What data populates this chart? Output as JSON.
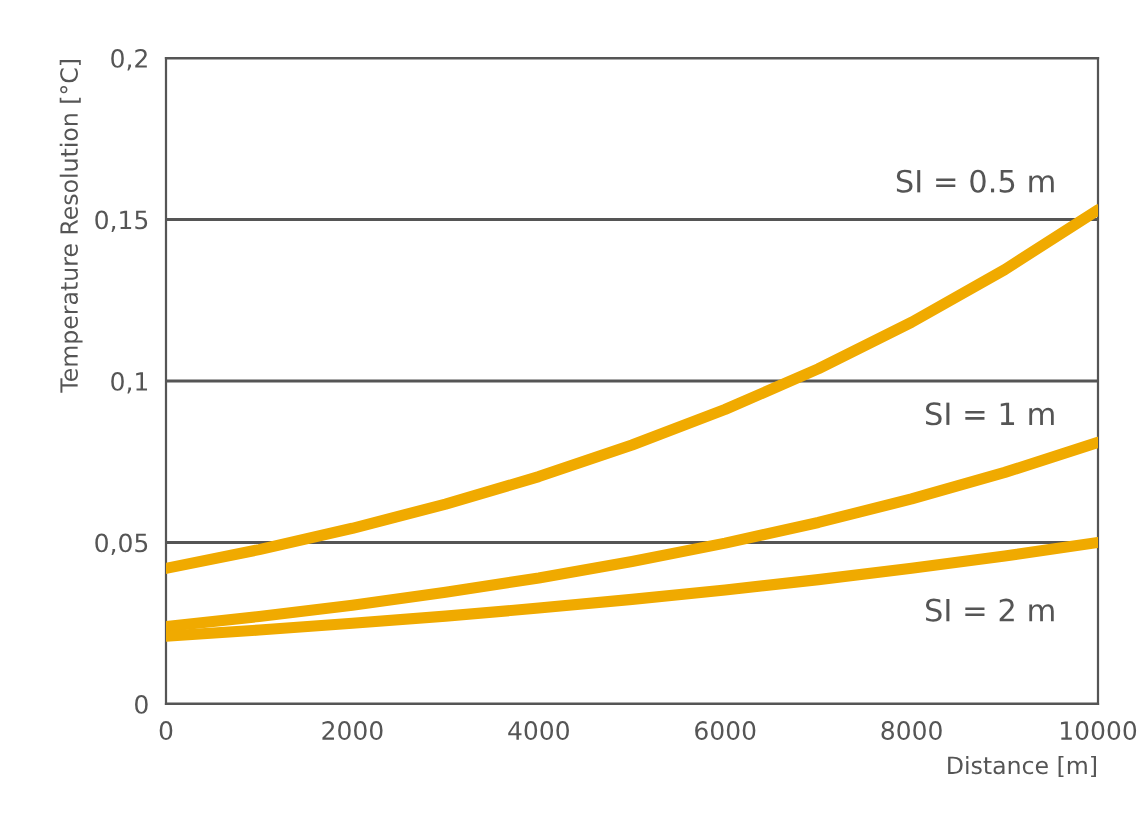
{
  "chart_data": {
    "type": "line",
    "xlabel": "Distance [m]",
    "ylabel": "Temperature Resolution [°C]",
    "x": [
      0,
      1000,
      2000,
      3000,
      4000,
      5000,
      6000,
      7000,
      8000,
      9000,
      10000
    ],
    "series": [
      {
        "name": "SI = 0.5 m",
        "color": "#f0aa00",
        "values": [
          0.042,
          0.0478,
          0.0544,
          0.0619,
          0.0704,
          0.0802,
          0.0912,
          0.1038,
          0.1182,
          0.1345,
          0.153
        ]
      },
      {
        "name": "SI = 1 m",
        "color": "#f0aa00",
        "values": [
          0.024,
          0.0271,
          0.0306,
          0.0346,
          0.039,
          0.0441,
          0.0498,
          0.0562,
          0.0635,
          0.0717,
          0.081
        ]
      },
      {
        "name": "SI = 2 m",
        "color": "#f0aa00",
        "values": [
          0.021,
          0.0229,
          0.025,
          0.0272,
          0.0297,
          0.0324,
          0.0353,
          0.0385,
          0.042,
          0.0458,
          0.05
        ]
      }
    ],
    "xlim": [
      0,
      10000
    ],
    "ylim": [
      0,
      0.2
    ],
    "xticks": [
      0,
      2000,
      4000,
      6000,
      8000,
      10000
    ],
    "yticks": [
      0,
      {
        "value": 0.05,
        "label": "0,05"
      },
      {
        "value": 0.1,
        "label": "0,1"
      },
      {
        "value": 0.15,
        "label": "0,15"
      },
      {
        "value": 0.2,
        "label": "0,2"
      }
    ],
    "grid": "y",
    "legend": false,
    "marker": "none",
    "line_style": "solid"
  }
}
